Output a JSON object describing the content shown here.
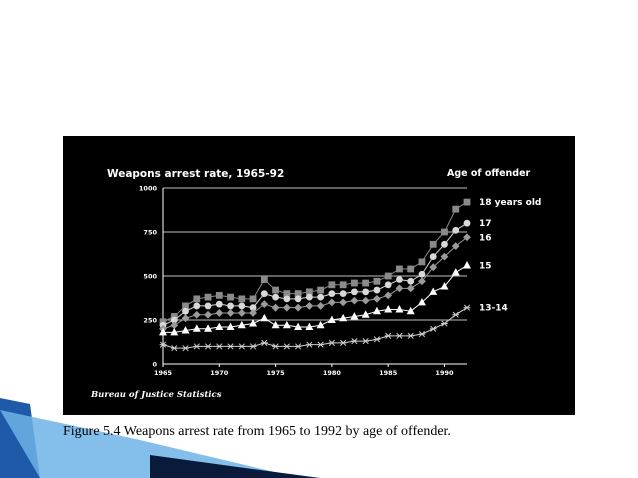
{
  "caption": "Figure 5.4  Weapons arrest rate from 1965 to 1992 by age of offender.",
  "colors": {
    "background": "#ffffff",
    "chart_background": "#000000",
    "accent_blue": "#1e5aa8",
    "accent_light": "#6fb3e6"
  },
  "chart_data": {
    "type": "line",
    "title": "Weapons arrest rate, 1965-92",
    "legend_title": "Age of offender",
    "source": "Bureau of Justice Statistics",
    "xlabel": "",
    "ylabel": "",
    "x": [
      1965,
      1966,
      1967,
      1968,
      1969,
      1970,
      1971,
      1972,
      1973,
      1974,
      1975,
      1976,
      1977,
      1978,
      1979,
      1980,
      1981,
      1982,
      1983,
      1984,
      1985,
      1986,
      1987,
      1988,
      1989,
      1990,
      1991,
      1992
    ],
    "xlim": [
      1965,
      1992
    ],
    "ylim": [
      0,
      1000
    ],
    "x_ticks": [
      {
        "value": 1965,
        "label": "1965"
      },
      {
        "value": 1970,
        "label": "1970"
      },
      {
        "value": 1975,
        "label": "1975"
      },
      {
        "value": 1980,
        "label": "1980"
      },
      {
        "value": 1985,
        "label": "1985"
      },
      {
        "value": 1990,
        "label": "1990"
      }
    ],
    "y_ticks": [
      {
        "value": 0,
        "label": "0"
      },
      {
        "value": 250,
        "label": "250"
      },
      {
        "value": 500,
        "label": "500"
      },
      {
        "value": 750,
        "label": "750"
      },
      {
        "value": 1000,
        "label": "1000"
      }
    ],
    "grid": "horizontal",
    "series": [
      {
        "name": "18 years old",
        "marker": "square",
        "color": "#8a8a8a",
        "values": [
          240,
          270,
          330,
          370,
          380,
          390,
          380,
          370,
          370,
          480,
          420,
          400,
          400,
          410,
          420,
          450,
          450,
          460,
          460,
          470,
          500,
          540,
          540,
          580,
          680,
          750,
          880,
          920
        ]
      },
      {
        "name": "17",
        "marker": "circle",
        "color": "#d8d8d8",
        "values": [
          220,
          250,
          300,
          330,
          330,
          340,
          330,
          330,
          320,
          400,
          380,
          370,
          370,
          380,
          380,
          400,
          400,
          410,
          410,
          420,
          450,
          480,
          470,
          510,
          610,
          680,
          760,
          800
        ]
      },
      {
        "name": "16",
        "marker": "diamond",
        "color": "#9a9a9a",
        "values": [
          200,
          220,
          260,
          280,
          280,
          290,
          290,
          290,
          290,
          340,
          320,
          320,
          320,
          330,
          330,
          350,
          350,
          360,
          360,
          370,
          390,
          430,
          430,
          470,
          550,
          610,
          670,
          720
        ]
      },
      {
        "name": "15",
        "marker": "triangle",
        "color": "#ffffff",
        "values": [
          180,
          180,
          190,
          200,
          200,
          210,
          210,
          220,
          230,
          260,
          220,
          220,
          210,
          210,
          220,
          250,
          260,
          270,
          280,
          300,
          310,
          310,
          300,
          350,
          410,
          440,
          520,
          560
        ]
      },
      {
        "name": "13-14",
        "marker": "star",
        "color": "#cfcfcf",
        "values": [
          110,
          90,
          90,
          100,
          100,
          100,
          100,
          100,
          100,
          120,
          100,
          100,
          100,
          110,
          110,
          120,
          120,
          130,
          130,
          140,
          160,
          160,
          160,
          170,
          200,
          230,
          280,
          320
        ]
      }
    ]
  }
}
